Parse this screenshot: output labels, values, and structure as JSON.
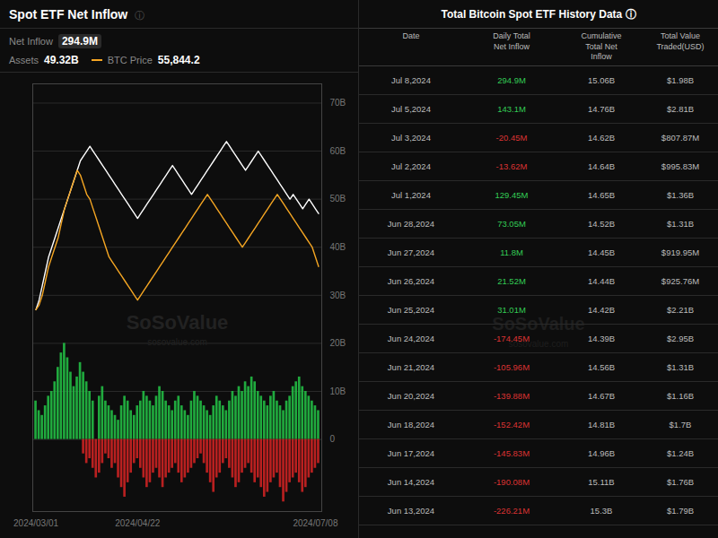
{
  "chart_data": [
    {
      "type": "bar",
      "title": "Spot ETF Net Inflow",
      "annotations": [
        "ⓘ",
        "Net Inflow",
        "294.9M",
        "49.32B",
        "55,844.2",
        "SoSoValue",
        "sosovalue.com"
      ],
      "categories": [
        "2024/03/01",
        null,
        null,
        null,
        null,
        null,
        null,
        null,
        null,
        null,
        null,
        null,
        null,
        null,
        null,
        null,
        null,
        null,
        null,
        null,
        null,
        null,
        null,
        null,
        null,
        null,
        null,
        null,
        null,
        null,
        null,
        null,
        "2024/04/22",
        null,
        null,
        null,
        null,
        null,
        null,
        null,
        null,
        null,
        null,
        null,
        null,
        null,
        null,
        null,
        null,
        null,
        null,
        null,
        null,
        null,
        null,
        null,
        null,
        null,
        null,
        null,
        null,
        null,
        null,
        null,
        null,
        null,
        null,
        null,
        null,
        null,
        null,
        null,
        null,
        null,
        null,
        null,
        null,
        null,
        null,
        null,
        null,
        null,
        null,
        null,
        null,
        null,
        null,
        null,
        "2024/07/08",
        null
      ],
      "series": [
        {
          "type": "bar",
          "color": "#22bb44",
          "values": [
            8,
            6,
            5,
            7,
            9,
            10,
            12,
            15,
            18,
            20,
            17,
            14,
            11,
            13,
            16,
            14,
            12,
            10,
            8,
            0,
            9,
            11,
            8,
            7,
            6,
            5,
            4,
            7,
            9,
            8,
            6,
            5,
            7,
            8,
            10,
            9,
            8,
            7,
            9,
            11,
            10,
            8,
            7,
            6,
            8,
            9,
            7,
            6,
            5,
            8,
            10,
            9,
            8,
            7,
            6,
            5,
            7,
            9,
            8,
            7,
            6,
            8,
            10,
            9,
            11,
            10,
            12,
            11,
            13,
            12,
            10,
            9,
            8,
            7,
            9,
            10,
            8,
            7,
            6,
            8,
            9,
            11,
            12,
            13,
            11,
            10,
            9,
            8,
            7,
            6
          ]
        },
        {
          "type": "bar",
          "color": "#cc2222",
          "values": [
            0,
            0,
            0,
            0,
            0,
            0,
            0,
            0,
            0,
            0,
            0,
            0,
            0,
            0,
            0,
            -3,
            -5,
            -4,
            -6,
            -8,
            -7,
            -5,
            -3,
            -4,
            -6,
            -5,
            -8,
            -10,
            -12,
            -9,
            -7,
            -5,
            -4,
            -6,
            -8,
            -10,
            -9,
            -7,
            -6,
            -8,
            -10,
            -8,
            -7,
            -6,
            -5,
            -7,
            -9,
            -8,
            -7,
            -6,
            -5,
            -4,
            -3,
            -5,
            -7,
            -9,
            -11,
            -8,
            -7,
            -5,
            -4,
            -6,
            -8,
            -10,
            -9,
            -7,
            -6,
            -5,
            -7,
            -9,
            -8,
            -10,
            -12,
            -11,
            -9,
            -8,
            -7,
            -10,
            -13,
            -11,
            -9,
            -8,
            -7,
            -9,
            -11,
            -10,
            -8,
            -7,
            -6,
            -5
          ]
        },
        {
          "name": "Assets",
          "type": "line",
          "color": "white",
          "values": [
            27,
            29,
            32,
            35,
            38,
            40,
            42,
            44,
            46,
            48,
            50,
            52,
            54,
            56,
            58,
            59,
            60,
            61,
            60,
            59,
            58,
            57,
            56,
            55,
            54,
            53,
            52,
            51,
            50,
            49,
            48,
            47,
            46,
            47,
            48,
            49,
            50,
            51,
            52,
            53,
            54,
            55,
            56,
            57,
            56,
            55,
            54,
            53,
            52,
            51,
            52,
            53,
            54,
            55,
            56,
            57,
            58,
            59,
            60,
            61,
            62,
            61,
            60,
            59,
            58,
            57,
            56,
            57,
            58,
            59,
            60,
            59,
            58,
            57,
            56,
            55,
            54,
            53,
            52,
            51,
            50,
            51,
            50,
            49,
            48,
            49,
            50,
            49,
            48,
            47
          ]
        },
        {
          "name": "BTC Price",
          "type": "line",
          "color": "#f5a623",
          "values": [
            27,
            28,
            30,
            33,
            36,
            38,
            40,
            42,
            45,
            48,
            50,
            52,
            54,
            56,
            55,
            53,
            51,
            50,
            48,
            46,
            44,
            42,
            40,
            38,
            37,
            36,
            35,
            34,
            33,
            32,
            31,
            30,
            29,
            30,
            31,
            32,
            33,
            34,
            35,
            36,
            37,
            38,
            39,
            40,
            41,
            42,
            43,
            44,
            45,
            46,
            47,
            48,
            49,
            50,
            51,
            50,
            49,
            48,
            47,
            46,
            45,
            44,
            43,
            42,
            41,
            40,
            41,
            42,
            43,
            44,
            45,
            46,
            47,
            48,
            49,
            50,
            51,
            50,
            49,
            48,
            47,
            46,
            45,
            44,
            43,
            42,
            41,
            40,
            38,
            36
          ]
        }
      ],
      "ylim": [
        -15,
        74
      ],
      "yticks": [
        0,
        {
          "value": 10,
          "label": "10B"
        },
        {
          "value": 20,
          "label": "20B"
        },
        {
          "value": 30,
          "label": "30B"
        },
        {
          "value": 40,
          "label": "40B"
        },
        {
          "value": 50,
          "label": "50B"
        },
        {
          "value": 60,
          "label": "60B"
        },
        {
          "value": 70,
          "label": "70B"
        }
      ],
      "grid": true
    },
    {
      "type": "table",
      "title": "Total Bitcoin Spot ETF History Data  ⓘ",
      "annotations": [
        "SoSoValue",
        "sosovalue.com"
      ],
      "columns": [
        "Date",
        "Daily Total\nNet Inflow",
        "Cumulative\nTotal Net\nInflow",
        "Total Value\nTraded(USD)"
      ],
      "rows": [
        [
          "Jul 8,2024",
          "294.9M",
          "15.06B",
          "$1.98B"
        ],
        [
          "Jul 5,2024",
          "143.1M",
          "14.76B",
          "$2.81B"
        ],
        [
          "Jul 3,2024",
          "-20.45M",
          "14.62B",
          "$807.87M"
        ],
        [
          "Jul 2,2024",
          "-13.62M",
          "14.64B",
          "$995.83M"
        ],
        [
          "Jul 1,2024",
          "129.45M",
          "14.65B",
          "$1.36B"
        ],
        [
          "Jun 28,2024",
          "73.05M",
          "14.52B",
          "$1.31B"
        ],
        [
          "Jun 27,2024",
          "11.8M",
          "14.45B",
          "$919.95M"
        ],
        [
          "Jun 26,2024",
          "21.52M",
          "14.44B",
          "$925.76M"
        ],
        [
          "Jun 25,2024",
          "31.01M",
          "14.42B",
          "$2.21B"
        ],
        [
          "Jun 24,2024",
          "-174.45M",
          "14.39B",
          "$2.95B"
        ],
        [
          "Jun 21,2024",
          "-105.96M",
          "14.56B",
          "$1.31B"
        ],
        [
          "Jun 20,2024",
          "-139.88M",
          "14.67B",
          "$1.16B"
        ],
        [
          "Jun 18,2024",
          "-152.42M",
          "14.81B",
          "$1.7B"
        ],
        [
          "Jun 17,2024",
          "-145.83M",
          "14.96B",
          "$1.24B"
        ],
        [
          "Jun 14,2024",
          "-190.08M",
          "15.11B",
          "$1.76B"
        ],
        [
          "Jun 13,2024",
          "-226.21M",
          "15.3B",
          "$1.79B"
        ]
      ],
      "colors": [
        "#33cc55",
        "#33cc55",
        "#dd3333",
        "#dd3333",
        "#33cc55",
        "#33cc55",
        "#33cc55",
        "#33cc55",
        "#33cc55",
        "#dd3333",
        "#dd3333",
        "#dd3333",
        "#dd3333",
        "#dd3333",
        "#dd3333",
        "#dd3333"
      ]
    }
  ]
}
